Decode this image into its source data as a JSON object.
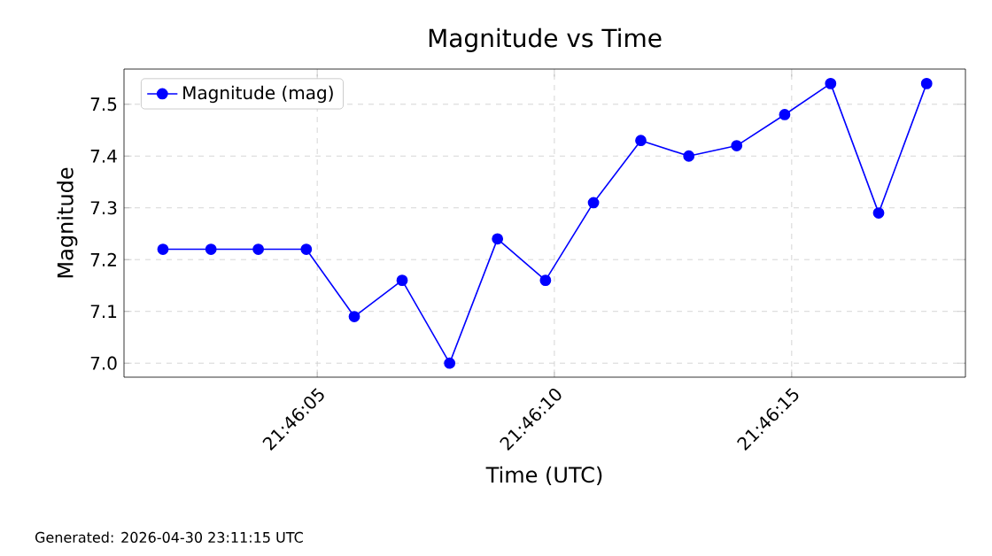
{
  "chart_data": {
    "type": "line",
    "title": "Magnitude vs Time",
    "xlabel": "Time (UTC)",
    "ylabel": "Magnitude",
    "x": [
      21.767153,
      21.767434,
      21.767711,
      21.767992,
      21.768273,
      21.768553,
      21.768831,
      21.769111,
      21.769392,
      21.769673,
      21.76995,
      21.770231,
      21.770511,
      21.770792,
      21.771061,
      21.771342,
      21.771623
    ],
    "series": [
      {
        "name": "Magnitude (mag)",
        "color": "#0000ff",
        "values": [
          7.22,
          7.22,
          7.22,
          7.22,
          7.09,
          7.16,
          7.0,
          7.24,
          7.16,
          7.31,
          7.43,
          7.4,
          7.42,
          7.48,
          7.54,
          7.29,
          7.54
        ]
      }
    ],
    "xlim": [
      21.766925,
      21.77185
    ],
    "xticks": [
      {
        "value": 21.768056,
        "label": "21:46:05"
      },
      {
        "value": 21.769444,
        "label": "21:46:10"
      },
      {
        "value": 21.770833,
        "label": "21:46:15"
      }
    ],
    "ylim": [
      6.973,
      7.568
    ],
    "yticks": [
      {
        "value": 7.0,
        "label": "7.0"
      },
      {
        "value": 7.1,
        "label": "7.1"
      },
      {
        "value": 7.2,
        "label": "7.2"
      },
      {
        "value": 7.3,
        "label": "7.3"
      },
      {
        "value": 7.4,
        "label": "7.4"
      },
      {
        "value": 7.5,
        "label": "7.5"
      }
    ],
    "grid": true,
    "legend": "top left",
    "marker": "circle",
    "line_style": "solid",
    "annotations": [
      "Generated: 2026-04-30 23:11:15 UTC"
    ]
  }
}
